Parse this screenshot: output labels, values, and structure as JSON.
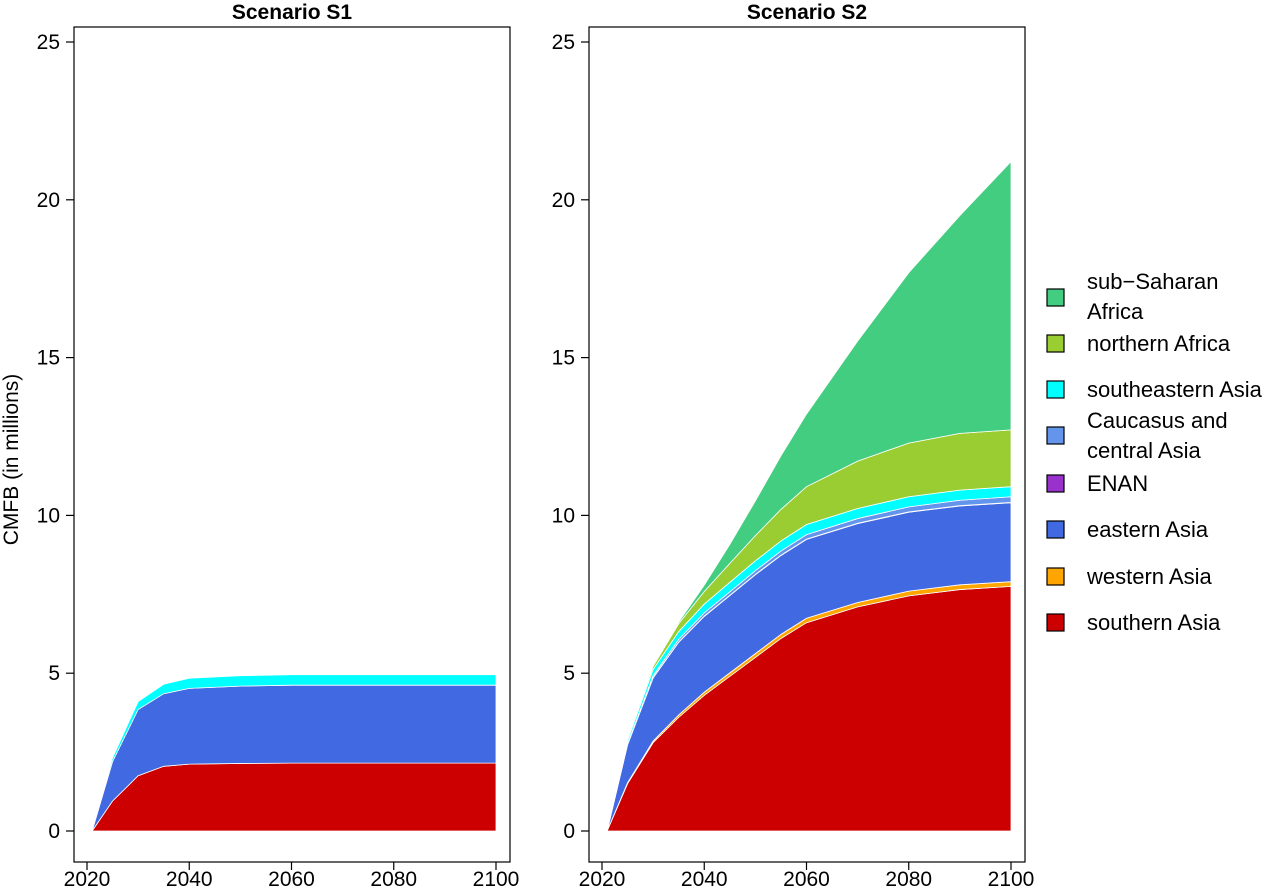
{
  "chart_data": [
    {
      "type": "area",
      "stacked": true,
      "title": "Scenario S1",
      "ylabel": "CMFB (in millions)",
      "xlabel": "",
      "xlim": [
        2020,
        2100
      ],
      "ylim": [
        0,
        25
      ],
      "x_ticks": [
        2020,
        2040,
        2060,
        2080,
        2100
      ],
      "y_ticks": [
        0,
        5,
        10,
        15,
        20,
        25
      ],
      "grid": false,
      "x": [
        2021,
        2025,
        2030,
        2035,
        2040,
        2050,
        2060,
        2080,
        2100
      ],
      "series": [
        {
          "name": "southern Asia",
          "color": "#CC0000",
          "values": [
            0,
            0.95,
            1.75,
            2.05,
            2.12,
            2.14,
            2.15,
            2.15,
            2.15
          ]
        },
        {
          "name": "western Asia",
          "color": "#FFA500",
          "values": [
            0,
            0,
            0,
            0,
            0,
            0,
            0,
            0,
            0
          ]
        },
        {
          "name": "eastern Asia",
          "color": "#4169E1",
          "values": [
            0,
            1.25,
            2.1,
            2.3,
            2.4,
            2.45,
            2.47,
            2.47,
            2.47
          ]
        },
        {
          "name": "ENAN",
          "color": "#9932CC",
          "values": [
            0,
            0,
            0,
            0,
            0,
            0,
            0,
            0,
            0
          ]
        },
        {
          "name": "Caucasus and central Asia",
          "color": "#6495ED",
          "values": [
            0,
            0,
            0,
            0,
            0,
            0,
            0,
            0,
            0
          ]
        },
        {
          "name": "southeastern Asia",
          "color": "#00FFFF",
          "values": [
            0,
            0.12,
            0.25,
            0.3,
            0.32,
            0.33,
            0.33,
            0.33,
            0.33
          ]
        },
        {
          "name": "northern Africa",
          "color": "#9ACD32",
          "values": [
            0,
            0,
            0,
            0,
            0,
            0,
            0,
            0,
            0
          ]
        },
        {
          "name": "sub−Saharan Africa",
          "color": "#43CD80",
          "values": [
            0,
            0,
            0,
            0,
            0,
            0,
            0,
            0,
            0
          ]
        }
      ]
    },
    {
      "type": "area",
      "stacked": true,
      "title": "Scenario S2",
      "ylabel": "",
      "xlabel": "",
      "xlim": [
        2020,
        2100
      ],
      "ylim": [
        0,
        25
      ],
      "x_ticks": [
        2020,
        2040,
        2060,
        2080,
        2100
      ],
      "y_ticks": [
        0,
        5,
        10,
        15,
        20,
        25
      ],
      "grid": false,
      "x": [
        2021,
        2025,
        2030,
        2035,
        2040,
        2045,
        2050,
        2055,
        2060,
        2070,
        2080,
        2090,
        2100
      ],
      "series": [
        {
          "name": "southern Asia",
          "color": "#CC0000",
          "values": [
            0,
            1.5,
            2.8,
            3.6,
            4.3,
            4.9,
            5.5,
            6.1,
            6.6,
            7.1,
            7.45,
            7.65,
            7.75
          ]
        },
        {
          "name": "western Asia",
          "color": "#FFA500",
          "values": [
            0,
            0.03,
            0.05,
            0.08,
            0.1,
            0.11,
            0.12,
            0.13,
            0.14,
            0.14,
            0.15,
            0.15,
            0.15
          ]
        },
        {
          "name": "eastern Asia",
          "color": "#4169E1",
          "values": [
            0,
            1.2,
            2.0,
            2.3,
            2.4,
            2.45,
            2.5,
            2.5,
            2.5,
            2.5,
            2.5,
            2.5,
            2.5
          ]
        },
        {
          "name": "ENAN",
          "color": "#9932CC",
          "values": [
            0,
            0.01,
            0.01,
            0.01,
            0.01,
            0.01,
            0.01,
            0.01,
            0.01,
            0.01,
            0.01,
            0.01,
            0.01
          ]
        },
        {
          "name": "Caucasus and central Asia",
          "color": "#6495ED",
          "values": [
            0,
            0.03,
            0.06,
            0.08,
            0.1,
            0.11,
            0.12,
            0.13,
            0.14,
            0.15,
            0.16,
            0.17,
            0.18
          ]
        },
        {
          "name": "southeastern Asia",
          "color": "#00FFFF",
          "values": [
            0,
            0.1,
            0.2,
            0.25,
            0.28,
            0.3,
            0.31,
            0.32,
            0.32,
            0.32,
            0.32,
            0.32,
            0.32
          ]
        },
        {
          "name": "northern Africa",
          "color": "#9ACD32",
          "values": [
            0,
            0.03,
            0.1,
            0.25,
            0.4,
            0.6,
            0.8,
            1.0,
            1.2,
            1.5,
            1.7,
            1.8,
            1.8
          ]
        },
        {
          "name": "sub−Saharan Africa",
          "color": "#43CD80",
          "values": [
            0,
            0.01,
            0.02,
            0.05,
            0.2,
            0.6,
            1.1,
            1.7,
            2.3,
            3.8,
            5.4,
            6.9,
            8.5
          ]
        }
      ]
    }
  ],
  "legend": {
    "placement": "right",
    "items": [
      {
        "label": "sub−Saharan Africa",
        "color": "#43CD80"
      },
      {
        "label": "northern Africa",
        "color": "#9ACD32"
      },
      {
        "label": "southeastern Asia",
        "color": "#00FFFF"
      },
      {
        "label": "Caucasus and central Asia",
        "color": "#6495ED"
      },
      {
        "label": "ENAN",
        "color": "#9932CC"
      },
      {
        "label": "eastern Asia",
        "color": "#4169E1"
      },
      {
        "label": "western Asia",
        "color": "#FFA500"
      },
      {
        "label": "southern Asia",
        "color": "#CC0000"
      }
    ]
  }
}
